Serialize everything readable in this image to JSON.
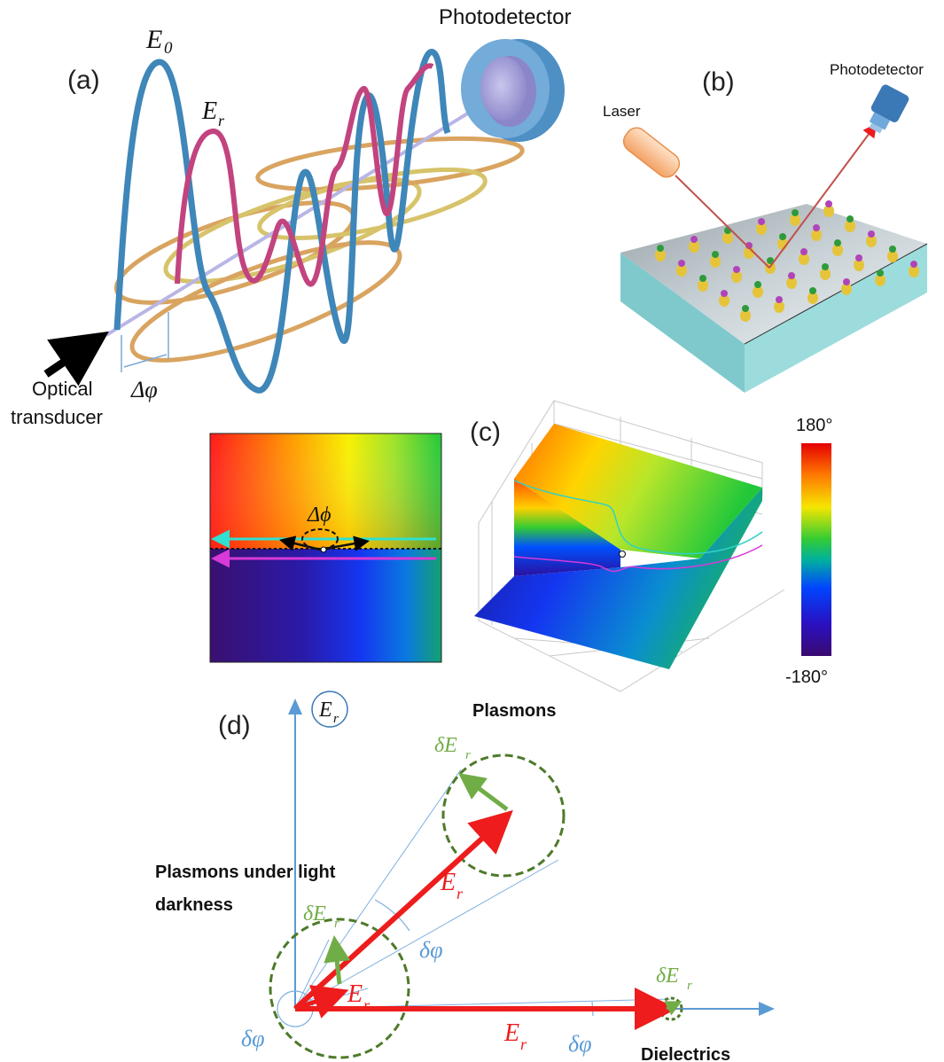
{
  "panel_a": {
    "tag": "(a)",
    "e0_label": "E",
    "e0_sub": "0",
    "er_label": "E",
    "er_sub": "r",
    "photodetector": "Photodetector",
    "transducer_line1": "Optical",
    "transducer_line2": "transducer",
    "delta_phi": "Δφ"
  },
  "panel_b": {
    "tag": "(b)",
    "laser": "Laser",
    "photodetector": "Photodetector"
  },
  "panel_c": {
    "tag": "(c)",
    "delta_phi": "Δϕ",
    "colorbar_max": "180°",
    "colorbar_min": "-180°"
  },
  "panel_d": {
    "tag": "(d)",
    "axis_label": "E",
    "axis_sub": "r",
    "plasmons": "Plasmons",
    "darkness_line1": "Plasmons under light",
    "darkness_line2": "darkness",
    "dielectrics": "Dielectrics",
    "delta_er": "δE",
    "delta_er_sub": "r",
    "er": "E",
    "er_sub": "r",
    "delta_phi": "δφ"
  },
  "colors": {
    "blue_wave": "#3f86b9",
    "magenta_wave": "#c2447f",
    "gold_ring": "#d9a460",
    "arrow_red": "#ee1c1c",
    "arrow_green": "#71ad47",
    "axis_blue": "#5b9bd5",
    "circle_green": "#4e7a2a"
  }
}
